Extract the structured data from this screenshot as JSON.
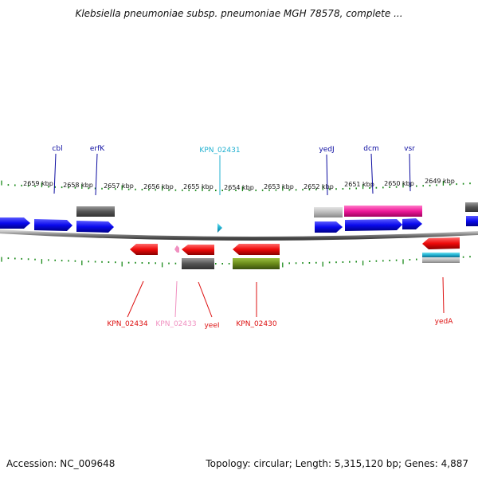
{
  "title": "Klebsiella pneumoniae subsp. pneumoniae MGH 78578, complete ...",
  "footer": {
    "accession": "Accession: NC_009648",
    "summary": "Topology: circular; Length: 5,315,120 bp; Genes: 4,887"
  },
  "colors": {
    "tick": "#1a8a1a",
    "backbone": "#8a8a8a",
    "forward_cds": "#0a0aee",
    "reverse_cds": "#ee0a0a",
    "gray_feature": "#666666",
    "light_gray_feature": "#bbbbbb",
    "pink_feature": "#ee1a9a",
    "olive_feature": "#6a8a1a",
    "cyan_feature": "#20b0d0",
    "light_pink_label": "#f090c0"
  },
  "map": {
    "kbp_labels": [
      "2659 kbp",
      "2658 kbp",
      "2657 kbp",
      "2656 kbp",
      "2655 kbp",
      "2654 kbp",
      "2653 kbp",
      "2652 kbp",
      "2651 kbp",
      "2650 kbp",
      "2649 kbp"
    ],
    "top_gene_labels": [
      {
        "text": "cbl",
        "color": "#0a0aa0"
      },
      {
        "text": "erfK",
        "color": "#0a0aa0"
      },
      {
        "text": "KPN_02431",
        "color": "#20b0d0"
      },
      {
        "text": "yedJ",
        "color": "#0a0aa0"
      },
      {
        "text": "dcm",
        "color": "#0a0aa0"
      },
      {
        "text": "vsr",
        "color": "#0a0aa0"
      }
    ],
    "bottom_gene_labels": [
      {
        "text": "KPN_02434",
        "color": "#dd1111"
      },
      {
        "text": "KPN_02433",
        "color": "#f090c0"
      },
      {
        "text": "yeeI",
        "color": "#dd1111"
      },
      {
        "text": "KPN_02430",
        "color": "#dd1111"
      },
      {
        "text": "yedA",
        "color": "#dd1111"
      }
    ]
  }
}
